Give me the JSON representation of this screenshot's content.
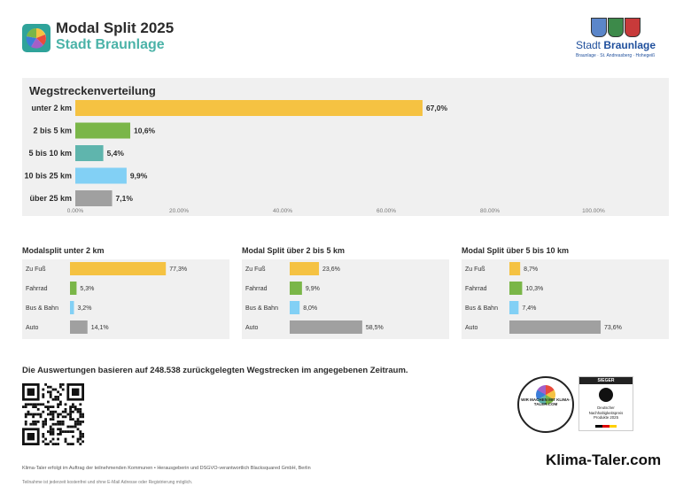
{
  "header": {
    "title": "Modal Split 2025",
    "subtitle": "Stadt Braunlage",
    "brand_prefix": "Stadt ",
    "brand_name": "Braunlage",
    "brand_sub": "Braunlage · St. Andreasberg · Hohegeiß"
  },
  "colors": {
    "yellow": "#f5c242",
    "green": "#7ab648",
    "teal": "#5fb5ad",
    "blue": "#82d0f5",
    "gray": "#a0a0a0",
    "accent": "#4bb3a8"
  },
  "chart_data": [
    {
      "type": "bar",
      "orientation": "horizontal",
      "title": "Wegstreckenverteilung",
      "categories": [
        "unter 2 km",
        "2 bis 5 km",
        "5 bis 10 km",
        "10 bis 25 km",
        "über 25 km"
      ],
      "values": [
        67.0,
        10.6,
        5.4,
        9.9,
        7.1
      ],
      "value_labels": [
        "67,0%",
        "10,6%",
        "5,4%",
        "9,9%",
        "7,1%"
      ],
      "xlim": [
        0,
        100
      ],
      "xticks": [
        "0.00%",
        "20.00%",
        "40.00%",
        "60.00%",
        "80.00%",
        "100.00%"
      ],
      "bar_colors": [
        "#f5c242",
        "#7ab648",
        "#5fb5ad",
        "#82d0f5",
        "#a0a0a0"
      ]
    },
    {
      "type": "bar",
      "orientation": "horizontal",
      "title": "Modalsplit unter 2 km",
      "categories": [
        "Zu Fuß",
        "Fahrrad",
        "Bus & Bahn",
        "Auto"
      ],
      "values": [
        77.3,
        5.3,
        3.2,
        14.1
      ],
      "value_labels": [
        "77,3%",
        "5,3%",
        "3,2%",
        "14,1%"
      ],
      "xlim": [
        0,
        100
      ],
      "bar_colors": [
        "#f5c242",
        "#7ab648",
        "#82d0f5",
        "#a0a0a0"
      ]
    },
    {
      "type": "bar",
      "orientation": "horizontal",
      "title": "Modal Split über 2 bis 5 km",
      "categories": [
        "Zu Fuß",
        "Fahrrad",
        "Bus & Bahn",
        "Auto"
      ],
      "values": [
        23.6,
        9.9,
        8.0,
        58.5
      ],
      "value_labels": [
        "23,6%",
        "9,9%",
        "8,0%",
        "58,5%"
      ],
      "xlim": [
        0,
        100
      ],
      "bar_colors": [
        "#f5c242",
        "#7ab648",
        "#82d0f5",
        "#a0a0a0"
      ]
    },
    {
      "type": "bar",
      "orientation": "horizontal",
      "title": "Modal Split über 5 bis 10 km",
      "categories": [
        "Zu Fuß",
        "Fahrrad",
        "Bus & Bahn",
        "Auto"
      ],
      "values": [
        8.7,
        10.3,
        7.4,
        73.6
      ],
      "value_labels": [
        "8,7%",
        "10,3%",
        "7,4%",
        "73,6%"
      ],
      "xlim": [
        0,
        100
      ],
      "bar_colors": [
        "#f5c242",
        "#7ab648",
        "#82d0f5",
        "#a0a0a0"
      ]
    }
  ],
  "note": "Die Auswertungen basieren auf 248.538 zurückgelegten Wegstrecken im angegebenen Zeitraum.",
  "badges": {
    "klima_badge": "WIR MACHEN MIT KLIMA-TALER.COM",
    "award_head": "SIEGER",
    "award_text": "Deutscher Nachhaltigkeitspreis Produkte 2025"
  },
  "footer": {
    "line1": "Klima-Taler erfolgt im Auftrag der teilnehmenden Kommunen • Herausgeberin und DSGVO-verantwortlich Blacksquared GmbH, Berlin",
    "line2": "Teilnahme ist jederzeit kostenfrei und ohne E-Mail Adresse oder Registrierung möglich.",
    "brand": "Klima-Taler.com"
  }
}
